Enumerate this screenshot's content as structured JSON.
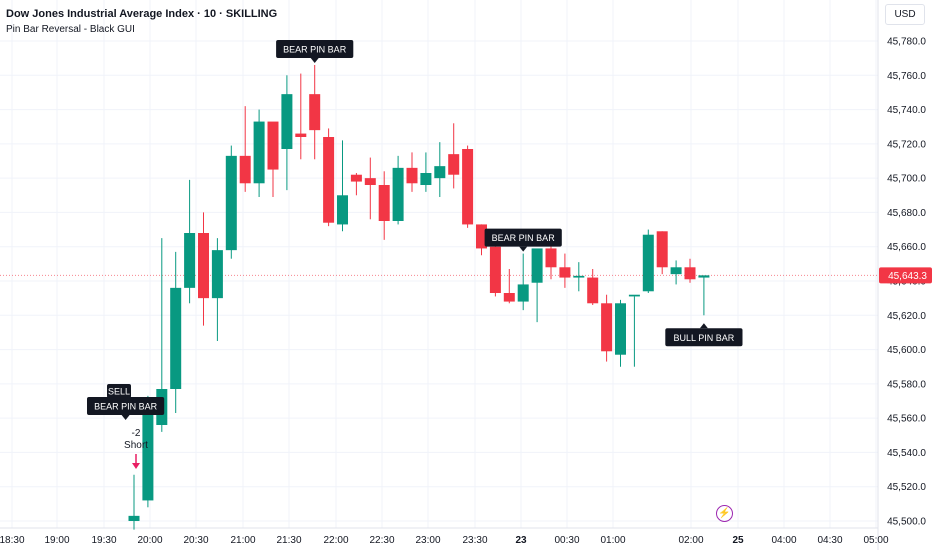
{
  "header": {
    "title": "Dow Jones Industrial Average Index · 10 · SKILLING",
    "indicator": "Pin Bar Reversal - Black GUI"
  },
  "currency_button": "USD",
  "colors": {
    "up": "#089981",
    "down": "#f23645",
    "label_bg": "#131722",
    "signal_arrow": "#e91e63",
    "grid": "#f0f3fa",
    "price_line": "#f23645",
    "event_icon": "#9c27b0"
  },
  "event_icon": "lightning-icon",
  "chart_data": {
    "type": "candlestick",
    "interval_minutes": 10,
    "y_axis": {
      "ylim": [
        45495,
        45795
      ],
      "ticks": [
        45500,
        45520,
        45540,
        45560,
        45580,
        45600,
        45620,
        45640,
        45660,
        45680,
        45700,
        45720,
        45740,
        45760,
        45780
      ],
      "tick_labels": [
        "45,500.0",
        "45,520.0",
        "45,540.0",
        "45,560.0",
        "45,580.0",
        "45,600.0",
        "45,620.0",
        "45,640.0",
        "45,660.0",
        "45,680.0",
        "45,700.0",
        "45,720.0",
        "45,740.0",
        "45,760.0",
        "45,780.0"
      ]
    },
    "x_axis": {
      "time_labels": [
        "18:30",
        "19:00",
        "19:30",
        "20:00",
        "20:30",
        "21:00",
        "21:30",
        "22:00",
        "22:30",
        "23:00",
        "23:30",
        "23",
        "00:30",
        "01:00",
        "02:00",
        "25",
        "04:00",
        "04:30",
        "05:00"
      ],
      "bold_labels": [
        "23",
        "25"
      ]
    },
    "grid": true,
    "last_price": 45643.3,
    "last_price_label": "45,643.3",
    "candles": [
      {
        "o": 45500,
        "h": 45527,
        "l": 45495,
        "c": 45503
      },
      {
        "o": 45512,
        "h": 45573,
        "l": 45508,
        "c": 45571
      },
      {
        "o": 45556,
        "h": 45665,
        "l": 45552,
        "c": 45577
      },
      {
        "o": 45577,
        "h": 45657,
        "l": 45563,
        "c": 45636
      },
      {
        "o": 45636,
        "h": 45699,
        "l": 45627,
        "c": 45668
      },
      {
        "o": 45668,
        "h": 45680,
        "l": 45614,
        "c": 45630
      },
      {
        "o": 45630,
        "h": 45665,
        "l": 45605,
        "c": 45658
      },
      {
        "o": 45658,
        "h": 45719,
        "l": 45653,
        "c": 45713
      },
      {
        "o": 45713,
        "h": 45742,
        "l": 45692,
        "c": 45697
      },
      {
        "o": 45697,
        "h": 45740,
        "l": 45689,
        "c": 45733
      },
      {
        "o": 45733,
        "h": 45732,
        "l": 45689,
        "c": 45705
      },
      {
        "o": 45717,
        "h": 45760,
        "l": 45693,
        "c": 45749
      },
      {
        "o": 45726,
        "h": 45761,
        "l": 45711,
        "c": 45724
      },
      {
        "o": 45749,
        "h": 45766,
        "l": 45711,
        "c": 45728
      },
      {
        "o": 45724,
        "h": 45729,
        "l": 45672,
        "c": 45674
      },
      {
        "o": 45673,
        "h": 45722,
        "l": 45669,
        "c": 45690
      },
      {
        "o": 45702,
        "h": 45703,
        "l": 45690,
        "c": 45698
      },
      {
        "o": 45700,
        "h": 45712,
        "l": 45676,
        "c": 45696
      },
      {
        "o": 45696,
        "h": 45704,
        "l": 45664,
        "c": 45675
      },
      {
        "o": 45675,
        "h": 45713,
        "l": 45673,
        "c": 45706
      },
      {
        "o": 45706,
        "h": 45715,
        "l": 45692,
        "c": 45697
      },
      {
        "o": 45696,
        "h": 45715,
        "l": 45692,
        "c": 45703
      },
      {
        "o": 45700,
        "h": 45721,
        "l": 45689,
        "c": 45707
      },
      {
        "o": 45714,
        "h": 45732,
        "l": 45694,
        "c": 45702
      },
      {
        "o": 45717,
        "h": 45719,
        "l": 45671,
        "c": 45673
      },
      {
        "o": 45673,
        "h": 45673,
        "l": 45655,
        "c": 45659
      },
      {
        "o": 45660,
        "h": 45670,
        "l": 45631,
        "c": 45633
      },
      {
        "o": 45633,
        "h": 45647,
        "l": 45627,
        "c": 45628
      },
      {
        "o": 45628,
        "h": 45656,
        "l": 45623,
        "c": 45638
      },
      {
        "o": 45639,
        "h": 45657,
        "l": 45616,
        "c": 45659
      },
      {
        "o": 45659,
        "h": 45662,
        "l": 45641,
        "c": 45648
      },
      {
        "o": 45648,
        "h": 45656,
        "l": 45636,
        "c": 45642
      },
      {
        "o": 45642,
        "h": 45651,
        "l": 45634,
        "c": 45643
      },
      {
        "o": 45642,
        "h": 45647,
        "l": 45626,
        "c": 45627
      },
      {
        "o": 45627,
        "h": 45632,
        "l": 45593,
        "c": 45599
      },
      {
        "o": 45597,
        "h": 45629,
        "l": 45590,
        "c": 45627
      },
      {
        "o": 45631,
        "h": 45631,
        "l": 45590,
        "c": 45632
      },
      {
        "o": 45634,
        "h": 45670,
        "l": 45633,
        "c": 45667
      },
      {
        "o": 45669,
        "h": 45669,
        "l": 45644,
        "c": 45648
      },
      {
        "o": 45644,
        "h": 45652,
        "l": 45638,
        "c": 45648
      },
      {
        "o": 45648,
        "h": 45653,
        "l": 45639,
        "c": 45641
      },
      {
        "o": 45642,
        "h": 45643,
        "l": 45620,
        "c": 45643.3
      }
    ],
    "annotations": [
      {
        "text": "SELL",
        "candle": 1,
        "kind": "plain"
      },
      {
        "text": "BEAR PIN BAR",
        "candle": 0,
        "kind": "above"
      },
      {
        "text": "BEAR PIN BAR",
        "candle": 13,
        "kind": "above"
      },
      {
        "text": "BEAR PIN BAR",
        "candle": 28,
        "kind": "above"
      },
      {
        "text": "BULL PIN BAR",
        "candle": 41,
        "kind": "below"
      }
    ],
    "signal": {
      "quantity": "-2",
      "label": "Short",
      "candle": 0
    }
  }
}
